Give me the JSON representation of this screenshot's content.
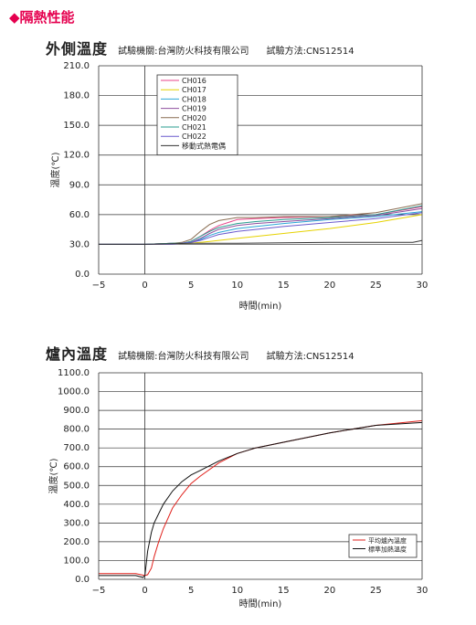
{
  "section_title": "◆隔熱性能",
  "chart_data": [
    {
      "type": "line",
      "title": "外側溫度",
      "lab": "試驗機關:台灣防火科技有限公司",
      "method": "試驗方法:CNS12514",
      "xlabel": "時間(min)",
      "ylabel": "溫度(℃)",
      "xlim": [
        -5,
        30
      ],
      "ylim": [
        0,
        210
      ],
      "xticks": [
        -5,
        0,
        5,
        10,
        15,
        20,
        25,
        30
      ],
      "yticks": [
        "0.0",
        "30.0",
        "60.0",
        "90.0",
        "120.0",
        "150.0",
        "180.0",
        "210.0"
      ],
      "grid": "horizontal",
      "legend_position": "top-left",
      "series": [
        {
          "name": "CH016",
          "color": "#e8458b",
          "x": [
            -5,
            0,
            3,
            4,
            5,
            6,
            7,
            8,
            10,
            12,
            15,
            20,
            25,
            30
          ],
          "y": [
            30,
            30,
            31,
            31,
            33,
            38,
            44,
            49,
            55,
            56,
            57,
            58,
            60,
            68
          ]
        },
        {
          "name": "CH017",
          "color": "#e6d200",
          "x": [
            -5,
            0,
            3,
            4,
            5,
            6,
            7,
            8,
            10,
            12,
            15,
            20,
            25,
            30
          ],
          "y": [
            30,
            30,
            30,
            31,
            31,
            32,
            33,
            34,
            36,
            38,
            41,
            46,
            52,
            60
          ]
        },
        {
          "name": "CH018",
          "color": "#2aa6d6",
          "x": [
            -5,
            0,
            3,
            4,
            5,
            6,
            7,
            8,
            10,
            12,
            15,
            20,
            25,
            30
          ],
          "y": [
            30,
            30,
            31,
            31,
            32,
            35,
            39,
            42,
            46,
            48,
            51,
            55,
            58,
            63
          ]
        },
        {
          "name": "CH019",
          "color": "#8e4f9e",
          "x": [
            -5,
            0,
            3,
            4,
            5,
            6,
            7,
            8,
            10,
            12,
            15,
            20,
            25,
            30
          ],
          "y": [
            30,
            30,
            31,
            31,
            32,
            36,
            41,
            45,
            49,
            51,
            53,
            56,
            59,
            66
          ]
        },
        {
          "name": "CH020",
          "color": "#8a6d52",
          "x": [
            -5,
            0,
            3,
            4,
            5,
            6,
            7,
            8,
            10,
            12,
            15,
            20,
            25,
            30
          ],
          "y": [
            30,
            30,
            31,
            32,
            35,
            43,
            50,
            54,
            57,
            57,
            58,
            58,
            62,
            71
          ]
        },
        {
          "name": "CH021",
          "color": "#2a9d8f",
          "x": [
            -5,
            0,
            3,
            4,
            5,
            6,
            7,
            8,
            10,
            12,
            15,
            20,
            25,
            30
          ],
          "y": [
            30,
            30,
            31,
            31,
            33,
            38,
            43,
            47,
            51,
            53,
            55,
            57,
            60,
            69
          ]
        },
        {
          "name": "CH022",
          "color": "#6a5acd",
          "x": [
            -5,
            0,
            3,
            4,
            5,
            6,
            7,
            8,
            10,
            12,
            15,
            20,
            25,
            30
          ],
          "y": [
            30,
            30,
            30,
            31,
            32,
            34,
            37,
            40,
            43,
            45,
            48,
            52,
            56,
            62
          ]
        },
        {
          "name": "移動式熱電偶",
          "color": "#333333",
          "x": [
            -5,
            0,
            5,
            10,
            20,
            29,
            29.5,
            30
          ],
          "y": [
            30,
            30,
            31,
            31,
            32,
            32,
            33,
            34
          ]
        }
      ]
    },
    {
      "type": "line",
      "title": "爐內溫度",
      "lab": "試驗機關:台灣防火科技有限公司",
      "method": "試驗方法:CNS12514",
      "xlabel": "時間(min)",
      "ylabel": "溫度(℃)",
      "xlim": [
        -5,
        30
      ],
      "ylim": [
        0,
        1100
      ],
      "xticks": [
        -5,
        0,
        5,
        10,
        15,
        20,
        25,
        30
      ],
      "yticks": [
        "0.0",
        "100.0",
        "200.0",
        "300.0",
        "400.0",
        "500.0",
        "600.0",
        "700.0",
        "800.0",
        "900.0",
        "1000.0",
        "1100.0"
      ],
      "grid": "horizontal",
      "legend_position": "bottom-right",
      "series": [
        {
          "name": "平均爐內溫度",
          "color": "#e0201b",
          "x": [
            -5,
            -1,
            0,
            0.3,
            0.7,
            1,
            1.5,
            2,
            3,
            4,
            5,
            6,
            8,
            10,
            12,
            15,
            20,
            25,
            30
          ],
          "y": [
            30,
            30,
            20,
            25,
            60,
            120,
            200,
            270,
            380,
            450,
            510,
            550,
            620,
            670,
            700,
            730,
            780,
            820,
            845
          ]
        },
        {
          "name": "標準加熱溫度",
          "color": "#111111",
          "x": [
            -5,
            -1,
            -0.2,
            0,
            0.3,
            0.7,
            1,
            1.5,
            2,
            3,
            4,
            5,
            6,
            8,
            10,
            12,
            15,
            20,
            25,
            30
          ],
          "y": [
            20,
            20,
            10,
            20,
            150,
            250,
            300,
            350,
            400,
            470,
            520,
            556,
            580,
            630,
            670,
            700,
            730,
            780,
            820,
            835
          ]
        }
      ]
    }
  ]
}
